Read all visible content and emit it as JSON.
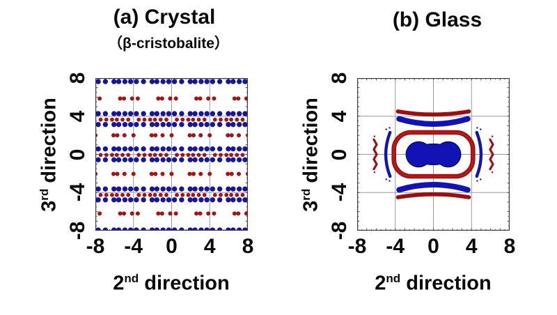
{
  "figure": {
    "background": "#ffffff",
    "description": "Two-panel scientific figure comparing particle distributions in crystal vs glass"
  },
  "chart_data": [
    {
      "panel": "a",
      "type": "scatter",
      "title": "(a) Crystal",
      "subtitle": "（β-cristobalite）",
      "xlabel": "2nd direction",
      "xlabel_parts": {
        "num": "2",
        "sup": "nd",
        "word": "direction"
      },
      "ylabel": "3rd direction",
      "ylabel_parts": {
        "num": "3",
        "sup": "rd",
        "word": "direction"
      },
      "xlim": [
        -8,
        8
      ],
      "ylim": [
        -8,
        8
      ],
      "xticks": [
        "-8",
        "-4",
        "0",
        "4",
        "8"
      ],
      "yticks": [
        "8",
        "4",
        "0",
        "-4",
        "-8"
      ],
      "grid": true,
      "gridline_positions": [
        -4,
        0,
        4
      ],
      "colors": {
        "blue": "#16169b",
        "red": "#a31414",
        "grid": "#9a9a9a",
        "axis": "#3a3a3a"
      },
      "dot_radius": {
        "blue": 0.27,
        "red": 0.21
      },
      "pattern": {
        "description": "periodic lattice: dense rows of red dots flanked above/below by blue dots every ~4 units, with sparse red rows between",
        "x_period": 4,
        "main_rows": {
          "y": [
            -8.5,
            -4.2,
            0,
            3.7,
            8.2
          ],
          "red_line_offsets": [
            0.55,
            1.15,
            1.75,
            2.25,
            2.85,
            3.45
          ],
          "blue_offsets": [
            -0.3,
            0.3,
            1.05,
            1.95,
            2.45,
            3.1
          ],
          "blue_dy": 0.57
        },
        "sparse_red_rows": {
          "rows": [
            {
              "y": 5.85,
              "variant": "B"
            },
            {
              "y": 2.0,
              "variant": "A"
            },
            {
              "y": -2.05,
              "variant": "A"
            },
            {
              "y": -6.2,
              "variant": "B"
            }
          ],
          "variants": {
            "A": [
              0,
              1.9,
              2.3,
              3.05
            ],
            "B": [
              0.45,
              2.6,
              3.0,
              3.85
            ]
          }
        }
      }
    },
    {
      "panel": "b",
      "type": "area",
      "title": "(b) Glass",
      "xlabel": "2nd direction",
      "xlabel_parts": {
        "num": "2",
        "sup": "nd",
        "word": "direction"
      },
      "ylabel": "3rd direction",
      "ylabel_parts": {
        "num": "3",
        "sup": "rd",
        "word": "direction"
      },
      "xlim": [
        -8,
        8
      ],
      "ylim": [
        -8,
        8
      ],
      "xticks": [
        "-8",
        "-4",
        "0",
        "4",
        "8"
      ],
      "yticks": [
        "8",
        "4",
        "0",
        "-4",
        "-8"
      ],
      "grid": true,
      "gridline_positions": [
        -4,
        0,
        4
      ],
      "colors": {
        "blue": "#1113b4",
        "blue_dark": "#05056e",
        "red": "#9c0f10",
        "red_bright": "#b71a1a",
        "grid": "#9a9a9a",
        "axis": "#3a3a3a"
      },
      "shapes": {
        "symmetric": true,
        "center_blob": {
          "color": "blue",
          "lobes": [
            {
              "cx": -1.55,
              "cy": 0,
              "r": 1.28
            },
            {
              "cx": 1.55,
              "cy": 0,
              "r": 1.28
            }
          ],
          "bridge": {
            "cx": 0,
            "cy": 0,
            "rx": 2.15,
            "ry": 1.05
          }
        },
        "ring": {
          "color": "red",
          "x_half": 4.15,
          "y_half": 2.3,
          "corner": 1.8,
          "thickness": 0.48
        },
        "h_bands": [
          {
            "color": "blue",
            "x_half": 3.6,
            "y_end": 3.72,
            "y_mid": 3.18,
            "thickness": 0.58
          },
          {
            "color": "red",
            "x_half": 3.72,
            "y_end": 4.5,
            "y_mid": 4.18,
            "thickness": 0.42
          }
        ],
        "v_crescents": [
          {
            "color": "blue",
            "x_end": -4.55,
            "x_ctrl": -5.45,
            "y_half": 2.3,
            "thickness": 0.32
          }
        ],
        "v_squiggles": [
          {
            "color": "red",
            "x_center": -6.1,
            "y_half": 1.55,
            "amplitude": 0.15,
            "segments": 6,
            "thickness": 0.23
          }
        ],
        "specks": [
          {
            "x": -4.95,
            "y": 2.62,
            "c": "blue"
          },
          {
            "x": -4.6,
            "y": 2.78,
            "c": "blue"
          },
          {
            "x": -4.95,
            "y": -2.62,
            "c": "blue"
          },
          {
            "x": -4.6,
            "y": -2.78,
            "c": "blue"
          },
          {
            "x": 4.95,
            "y": 2.62,
            "c": "blue"
          },
          {
            "x": 4.6,
            "y": 2.78,
            "c": "blue"
          },
          {
            "x": 4.95,
            "y": -2.62,
            "c": "blue"
          },
          {
            "x": 4.6,
            "y": -2.78,
            "c": "blue"
          },
          {
            "x": -6.18,
            "y": 1.88,
            "c": "red"
          },
          {
            "x": -6.18,
            "y": -1.88,
            "c": "red"
          },
          {
            "x": 6.18,
            "y": 1.88,
            "c": "red"
          },
          {
            "x": 6.18,
            "y": -1.88,
            "c": "red"
          }
        ]
      }
    }
  ]
}
